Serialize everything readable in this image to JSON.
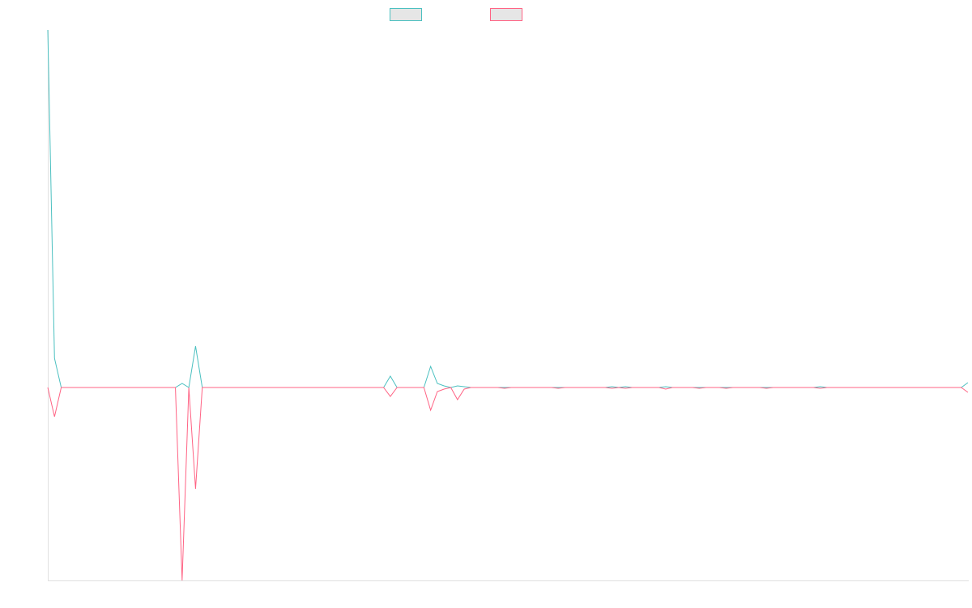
{
  "chart_data": {
    "type": "line",
    "categories": [
      null,
      null,
      null,
      null,
      null,
      null,
      null,
      null,
      null,
      null,
      null,
      null,
      null,
      null,
      null,
      null,
      null,
      null,
      null,
      null,
      null,
      null,
      null,
      null,
      null,
      null,
      null,
      null,
      null,
      null,
      null,
      null,
      null,
      null,
      null,
      null,
      null,
      null,
      null,
      null,
      null,
      null,
      null,
      null,
      null,
      null,
      null,
      null,
      null,
      null,
      null,
      null,
      null,
      null,
      null,
      null,
      null,
      null,
      null,
      null,
      null,
      null,
      null,
      null,
      null,
      null,
      null,
      null,
      null,
      null,
      null,
      null,
      null,
      null,
      null,
      null,
      null,
      null,
      null,
      null,
      null,
      null,
      null,
      null,
      null,
      null,
      null,
      null,
      null,
      null,
      null,
      null,
      null,
      null,
      null,
      null,
      null,
      null,
      null,
      null,
      null,
      null,
      null,
      null,
      null,
      null,
      null,
      null,
      null,
      null,
      null,
      null,
      null,
      null,
      null,
      null,
      null,
      null,
      null,
      null,
      null,
      null,
      null,
      null,
      null,
      null,
      null,
      null,
      null,
      null,
      null,
      null,
      null,
      null,
      null,
      null,
      null,
      null
    ],
    "series": [
      {
        "color": "#4bc0c0",
        "values": [
          441,
          36,
          0,
          0,
          0,
          0,
          0,
          0,
          0,
          0,
          0,
          0,
          0,
          0,
          0,
          0,
          0,
          0,
          0,
          0,
          5,
          0,
          51,
          0,
          0,
          0,
          0,
          0,
          0,
          0,
          0,
          0,
          0,
          0,
          0,
          0,
          0,
          0,
          0,
          0,
          0,
          0,
          0,
          0,
          0,
          0,
          0,
          0,
          0,
          0,
          0,
          14,
          0,
          0,
          0,
          0,
          0,
          26,
          5,
          2,
          0,
          2,
          1,
          0,
          0,
          0,
          0,
          0,
          0,
          0,
          0,
          0,
          0,
          0,
          0,
          0,
          0,
          0,
          0,
          0,
          0,
          0,
          0,
          0,
          1,
          0,
          1,
          0,
          0,
          0,
          0,
          0,
          1,
          0,
          0,
          0,
          0,
          0,
          0,
          0,
          0,
          0,
          0,
          0,
          0,
          0,
          0,
          0,
          0,
          0,
          0,
          0,
          0,
          0,
          0,
          1,
          0,
          0,
          0,
          0,
          0,
          0,
          0,
          0,
          0,
          0,
          0,
          0,
          0,
          0,
          0,
          0,
          0,
          0,
          0,
          0,
          0,
          6
        ]
      },
      {
        "color": "#ff6384",
        "values": [
          0,
          -36,
          0,
          0,
          0,
          0,
          0,
          0,
          0,
          0,
          0,
          0,
          0,
          0,
          0,
          0,
          0,
          0,
          0,
          0,
          -238,
          0,
          -125,
          0,
          0,
          0,
          0,
          0,
          0,
          0,
          0,
          0,
          0,
          0,
          0,
          0,
          0,
          0,
          0,
          0,
          0,
          0,
          0,
          0,
          0,
          0,
          0,
          0,
          0,
          0,
          0,
          -11,
          0,
          0,
          0,
          0,
          0,
          -28,
          -5,
          -2,
          0,
          -15,
          -2,
          0,
          0,
          0,
          0,
          0,
          -1,
          0,
          0,
          0,
          0,
          0,
          0,
          0,
          -1,
          0,
          0,
          0,
          0,
          0,
          0,
          0,
          -1,
          0,
          -1,
          0,
          0,
          0,
          0,
          0,
          -2,
          0,
          0,
          0,
          0,
          -1,
          0,
          0,
          0,
          -1,
          0,
          0,
          0,
          0,
          0,
          -1,
          0,
          0,
          0,
          0,
          0,
          0,
          0,
          -1,
          0,
          0,
          0,
          0,
          0,
          0,
          0,
          0,
          0,
          0,
          0,
          0,
          0,
          0,
          0,
          0,
          0,
          0,
          0,
          0,
          0,
          -6
        ]
      }
    ],
    "ylim": [
      -238,
      441
    ],
    "legend": "top"
  }
}
